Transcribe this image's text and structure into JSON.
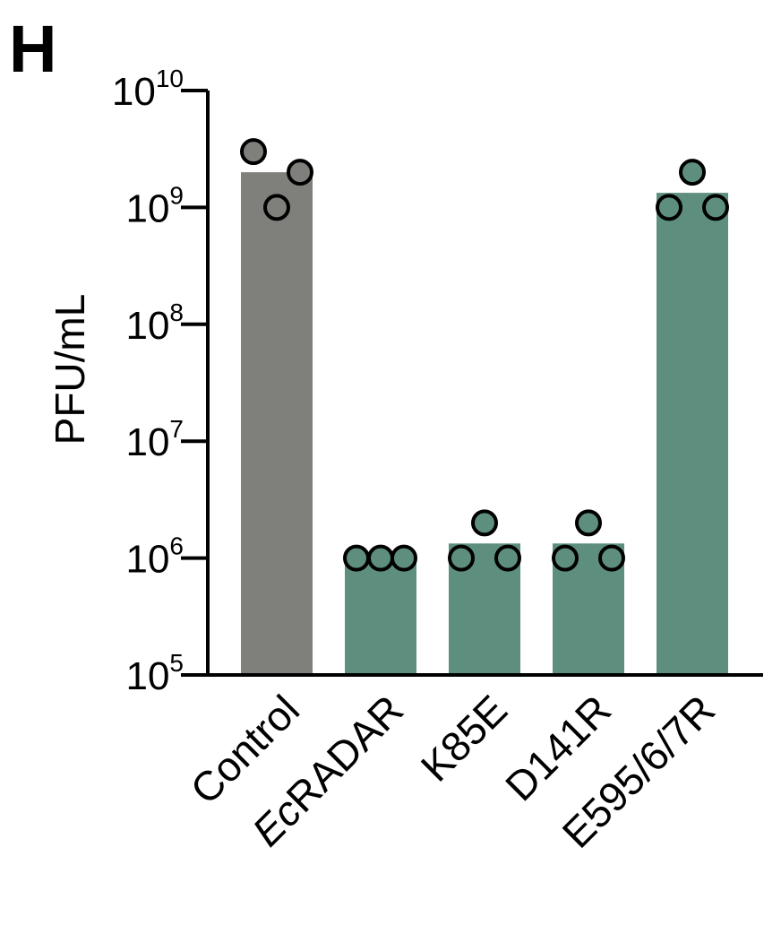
{
  "panel_label": "H",
  "chart_data": {
    "type": "bar",
    "title": "",
    "xlabel": "",
    "ylabel": "PFU/mL",
    "yscale": "log",
    "ylim": [
      100000,
      10000000000
    ],
    "ytick_labels": [
      {
        "value": 100000,
        "base": "10",
        "exp": "5"
      },
      {
        "value": 1000000,
        "base": "10",
        "exp": "6"
      },
      {
        "value": 10000000,
        "base": "10",
        "exp": "7"
      },
      {
        "value": 100000000,
        "base": "10",
        "exp": "8"
      },
      {
        "value": 1000000000,
        "base": "10",
        "exp": "9"
      },
      {
        "value": 10000000000,
        "base": "10",
        "exp": "10"
      }
    ],
    "categories": [
      {
        "label": "Control",
        "italic_prefix": "",
        "rest": "Control"
      },
      {
        "label": "EcRADAR",
        "italic_prefix": "Ec",
        "rest": "RADAR"
      },
      {
        "label": "K85E",
        "italic_prefix": "",
        "rest": "K85E"
      },
      {
        "label": "D141R",
        "italic_prefix": "",
        "rest": "D141R"
      },
      {
        "label": "E595/6/7R",
        "italic_prefix": "",
        "rest": "E595/6/7R"
      }
    ],
    "values": [
      2000000000,
      1000000,
      1333333,
      1333333,
      1333333333
    ],
    "points": [
      [
        3000000000,
        1000000000,
        2000000000
      ],
      [
        1000000,
        1000000,
        1000000
      ],
      [
        1000000,
        2000000,
        1000000
      ],
      [
        1000000,
        2000000,
        1000000
      ],
      [
        1000000000,
        2000000000,
        1000000000
      ]
    ],
    "colors": [
      "#7f807b",
      "#5e8f7e",
      "#5e8f7e",
      "#5e8f7e",
      "#5e8f7e"
    ],
    "point_colors": [
      "#7f807b",
      "#5e8f7e",
      "#5e8f7e",
      "#5e8f7e",
      "#5e8f7e"
    ],
    "legend": "none",
    "grid": false
  }
}
